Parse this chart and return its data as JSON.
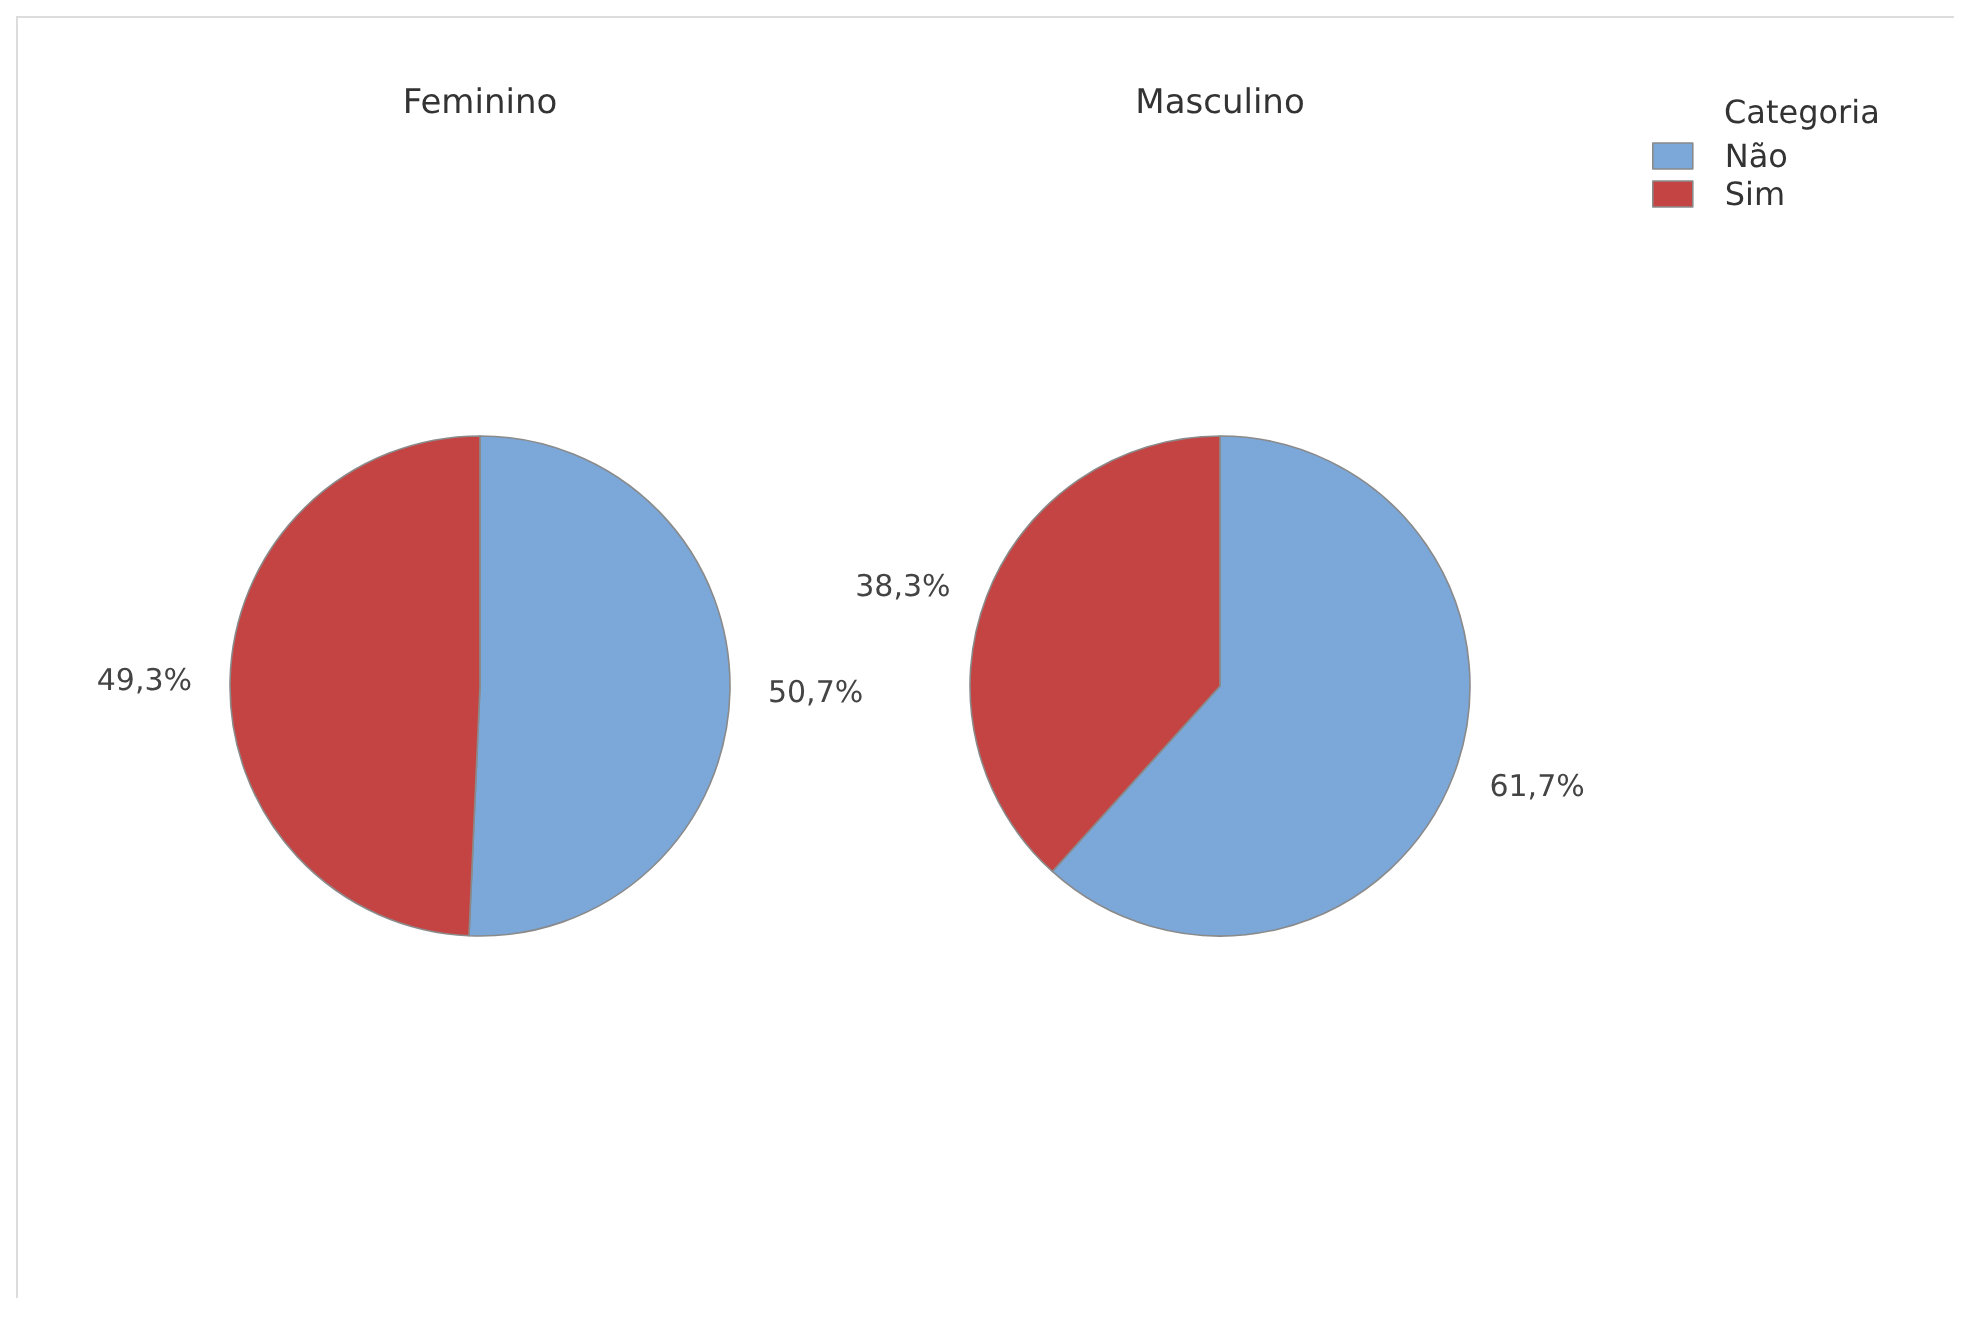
{
  "chart_data": {
    "type": "pie",
    "categories": [
      "Não",
      "Sim"
    ],
    "colors": [
      "#7ba7d9",
      "#c44444"
    ],
    "series": [
      {
        "name": "Feminino",
        "values": [
          50.7,
          49.3
        ],
        "value_labels": [
          "50,7%",
          "49,3%"
        ]
      },
      {
        "name": "Masculino",
        "values": [
          61.7,
          38.3
        ],
        "value_labels": [
          "61,7%",
          "38,3%"
        ]
      }
    ],
    "legend": "top right",
    "legend_title": "Categoria"
  }
}
